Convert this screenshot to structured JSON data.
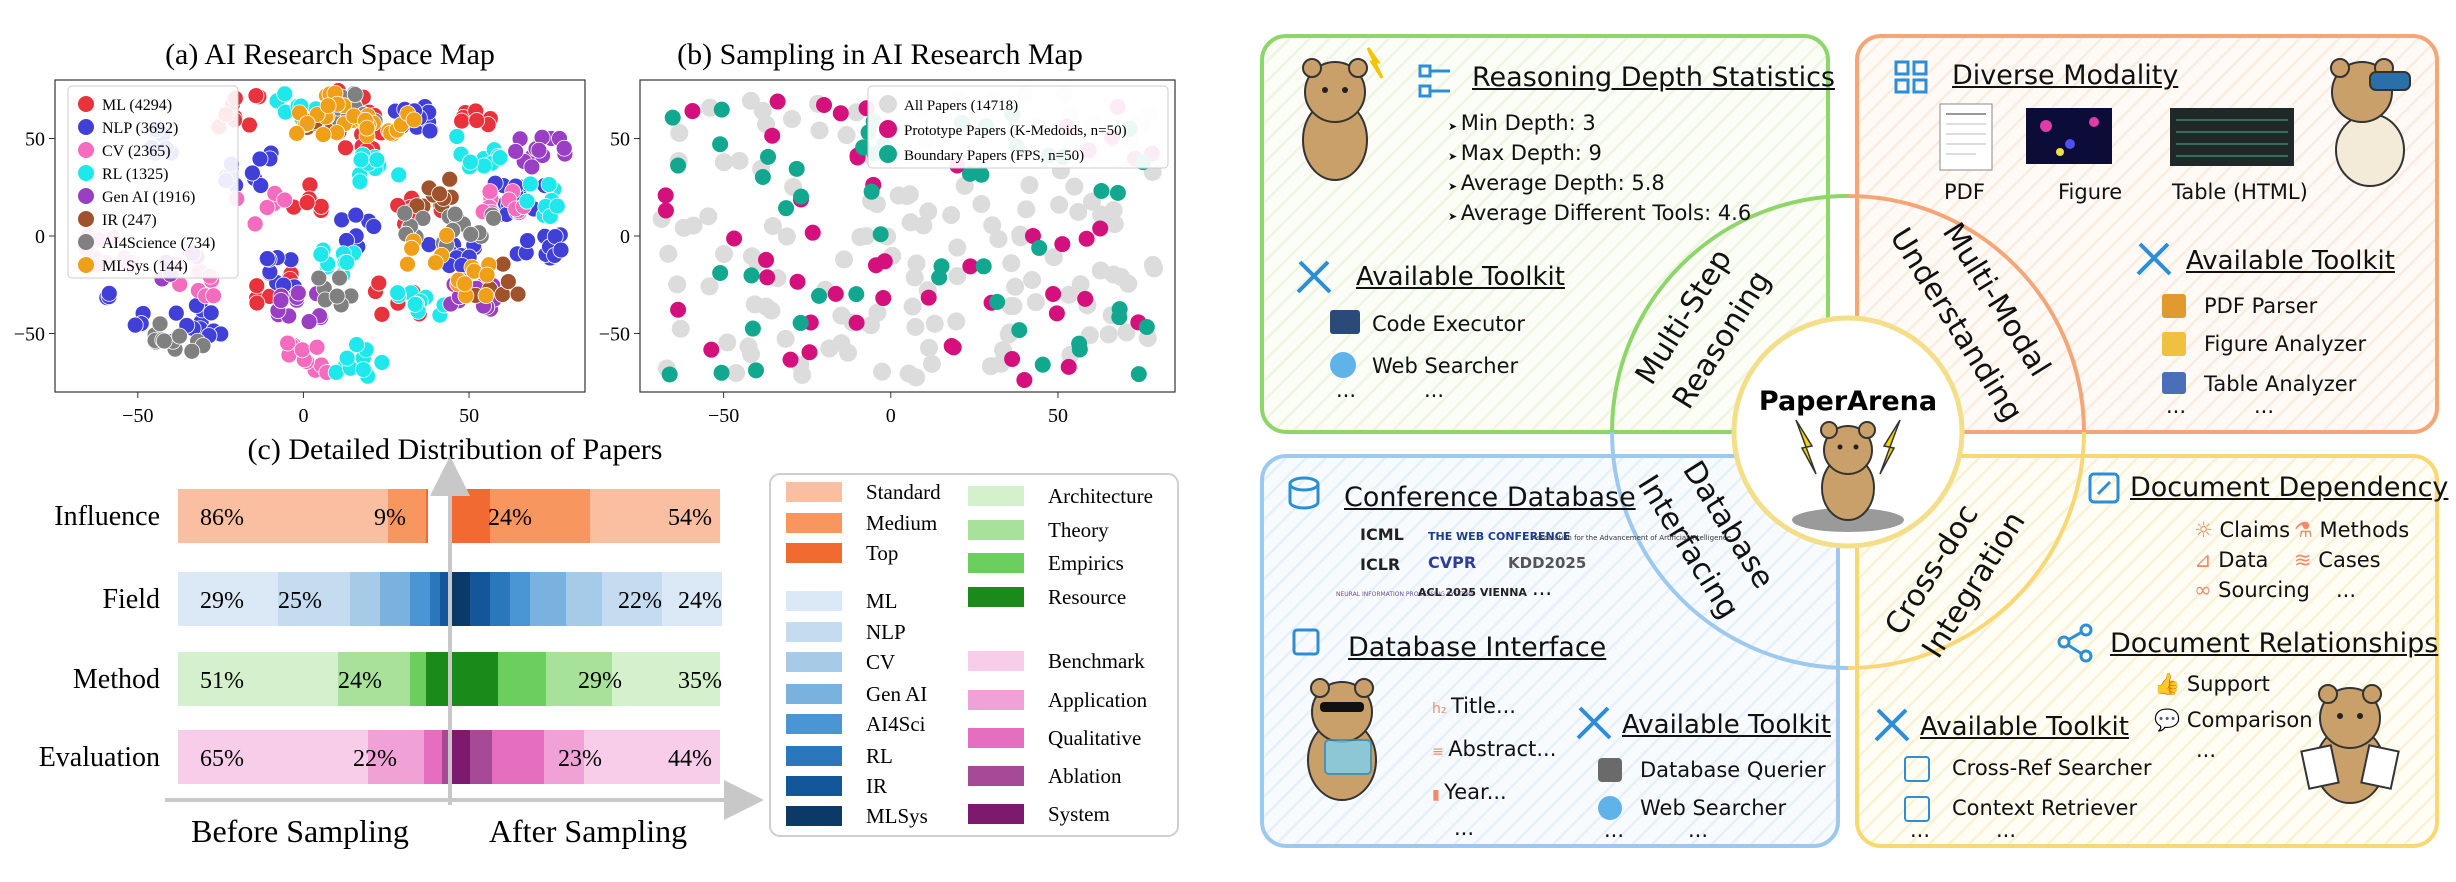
{
  "panel_a": {
    "title": "(a) AI Research Space Map",
    "legend": [
      {
        "label": "ML (4294)",
        "color": "#e8323c"
      },
      {
        "label": "NLP (3692)",
        "color": "#4040d8"
      },
      {
        "label": "CV (2365)",
        "color": "#f56bbd"
      },
      {
        "label": "RL (1325)",
        "color": "#1ee8ec"
      },
      {
        "label": "Gen AI (1916)",
        "color": "#9a3fc4"
      },
      {
        "label": "IR (247)",
        "color": "#a0522d"
      },
      {
        "label": "AI4Science (734)",
        "color": "#808080"
      },
      {
        "label": "MLSys (144)",
        "color": "#f0a018"
      }
    ],
    "x_ticks": [
      "−50",
      "0",
      "50"
    ],
    "y_ticks": [
      "50",
      "0",
      "−50"
    ]
  },
  "panel_b": {
    "title": "(b) Sampling in AI Research Map",
    "legend": [
      {
        "label": "All Papers (14718)",
        "color": "#dcdcdc"
      },
      {
        "label": "Prototype Papers (K-Medoids, n=50)",
        "color": "#d4107c"
      },
      {
        "label": "Boundary Papers (FPS, n=50)",
        "color": "#12a88f"
      }
    ],
    "x_ticks": [
      "−50",
      "0",
      "50"
    ],
    "y_ticks": [
      "50",
      "0",
      "−50"
    ]
  },
  "panel_c": {
    "title": "(c) Detailed Distribution of Papers",
    "rows": [
      "Influence",
      "Field",
      "Method",
      "Evaluation"
    ],
    "bar_labels": {
      "Influence": [
        "86%",
        "9%",
        "24%",
        "54%"
      ],
      "Field": [
        "29%",
        "25%",
        "22%",
        "24%"
      ],
      "Method": [
        "51%",
        "24%",
        "29%",
        "35%"
      ],
      "Evaluation": [
        "65%",
        "22%",
        "23%",
        "44%"
      ]
    },
    "before_label": "Before Sampling",
    "after_label": "After Sampling",
    "legend_col1": [
      {
        "label": "Standard",
        "color": "#f9bfa0"
      },
      {
        "label": "Medium",
        "color": "#f7965e"
      },
      {
        "label": "Top",
        "color": "#f06a32"
      },
      {
        "label": "ML",
        "color": "#dbe9f6"
      },
      {
        "label": "NLP",
        "color": "#c4dbf0"
      },
      {
        "label": "CV",
        "color": "#a6cbe9"
      },
      {
        "label": "Gen AI",
        "color": "#7ab2df"
      },
      {
        "label": "AI4Sci",
        "color": "#4a96d4"
      },
      {
        "label": "RL",
        "color": "#2a78bb"
      },
      {
        "label": "IR",
        "color": "#13579a"
      },
      {
        "label": "MLSys",
        "color": "#0c3a68"
      }
    ],
    "legend_col2": [
      {
        "label": "Architecture",
        "color": "#d4f0cc"
      },
      {
        "label": "Theory",
        "color": "#a8e29a"
      },
      {
        "label": "Empirics",
        "color": "#6cce5e"
      },
      {
        "label": "Resource",
        "color": "#1a8a1a"
      },
      {
        "label": "Benchmark",
        "color": "#f7cde9"
      },
      {
        "label": "Application",
        "color": "#f0a2d6"
      },
      {
        "label": "Qualitative",
        "color": "#e56ec0"
      },
      {
        "label": "Ablation",
        "color": "#a64a98"
      },
      {
        "label": "System",
        "color": "#7e1a6e"
      }
    ]
  },
  "arena": {
    "center_title": "PaperArena",
    "reasoning": {
      "heading": "Reasoning Depth Statistics",
      "items": [
        "Min Depth: 3",
        "Max Depth: 9",
        "Average Depth: 5.8",
        "Average Different Tools: 4.6"
      ],
      "toolkit_heading": "Available Toolkit",
      "tools": [
        "Code Executor",
        "Web Searcher"
      ],
      "ellipsis": "...",
      "arc_label_1": "Multi-Step",
      "arc_label_2": "Reasoning"
    },
    "modality": {
      "heading": "Diverse Modality",
      "items": [
        "PDF",
        "Figure",
        "Table (HTML)"
      ],
      "toolkit_heading": "Available Toolkit",
      "tools": [
        "PDF Parser",
        "Figure Analyzer",
        "Table Analyzer"
      ],
      "ellipsis": "...",
      "arc_label_1": "Multi-Modal",
      "arc_label_2": "Understanding"
    },
    "database": {
      "heading": "Conference Database",
      "logos": [
        "ICML",
        "THE WEB CONFERENCE",
        "Association for the Advancement of Artificial Intelligence",
        "ICLR",
        "CVPR",
        "KDD2025",
        "NEURAL INFORMATION PROCESSING SYSTEMS",
        "ACL 2025 VIENNA"
      ],
      "interface_heading": "Database Interface",
      "interface_items": [
        "Title...",
        "Abstract...",
        "Year..."
      ],
      "toolkit_heading": "Available Toolkit",
      "tools": [
        "Database Querier",
        "Web Searcher"
      ],
      "ellipsis": "...",
      "arc_label_1": "Database",
      "arc_label_2": "Interfacing"
    },
    "crossdoc": {
      "heading": "Document Dependency",
      "deps": [
        "Claims",
        "Methods",
        "Data",
        "Cases",
        "Sourcing"
      ],
      "rel_heading": "Document Relationships",
      "rels": [
        "Support",
        "Comparison"
      ],
      "toolkit_heading": "Available Toolkit",
      "tools": [
        "Cross-Ref Searcher",
        "Context Retriever"
      ],
      "ellipsis": "...",
      "arc_label_1": "Cross-doc",
      "arc_label_2": "Integration"
    }
  }
}
